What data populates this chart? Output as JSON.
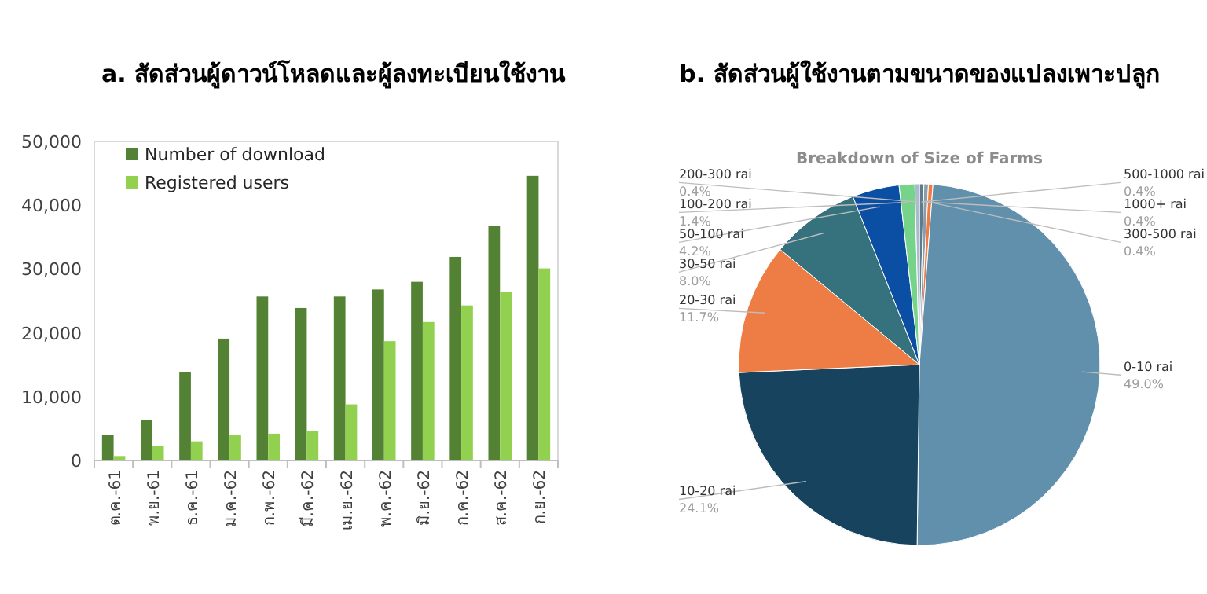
{
  "chart_data": [
    {
      "type": "bar",
      "title": "a. สัดส่วนผู้ดาวน์โหลดและผู้ลงทะเบียนใช้งาน",
      "categories": [
        "ต.ค.-61",
        "พ.ย.-61",
        "ธ.ค.-61",
        "ม.ค.-62",
        "ก.พ.-62",
        "มี.ค.-62",
        "เม.ย.-62",
        "พ.ค.-62",
        "มิ.ย.-62",
        "ก.ค.-62",
        "ส.ค.-62",
        "ก.ย.-62"
      ],
      "series": [
        {
          "name": "Number of download",
          "color": "#548235",
          "values": [
            4000,
            6400,
            13900,
            19100,
            25700,
            23900,
            25700,
            26800,
            28000,
            31900,
            36800,
            44600
          ]
        },
        {
          "name": "Registered users",
          "color": "#92d050",
          "values": [
            700,
            2300,
            3000,
            4000,
            4200,
            4600,
            8800,
            18700,
            21700,
            24300,
            26400,
            30100
          ]
        }
      ],
      "ylim": [
        0,
        50000
      ],
      "yticks": [
        0,
        {
          "value": 10000,
          "label": "10,000"
        },
        {
          "value": 20000,
          "label": "20,000"
        },
        {
          "value": 30000,
          "label": "30,000"
        },
        {
          "value": 40000,
          "label": "40,000"
        },
        {
          "value": 50000,
          "label": "50,000"
        }
      ],
      "grid": false,
      "legend": "top left"
    },
    {
      "type": "pie",
      "title": "b. สัดส่วนผู้ใช้งานตามขนาดของแปลงเพาะปลูก",
      "subtitle": "Breakdown of Size of Farms",
      "categories": [
        "500-1000 rai",
        "1000+ rai",
        "300-500 rai",
        "0-10 rai",
        "10-20 rai",
        "20-30 rai",
        "30-50 rai",
        "50-100 rai",
        "100-200 rai",
        "200-300 rai"
      ],
      "values": [
        0.4,
        0.4,
        0.4,
        49.0,
        24.1,
        11.7,
        8.0,
        4.2,
        1.4,
        0.4
      ],
      "colors": [
        "#5d7d8f",
        "#8c9caa",
        "#ee7d45",
        "#6190ad",
        "#17435f",
        "#ee7d45",
        "#36717e",
        "#0b4fa4",
        "#76d38a",
        "#a9bccd"
      ],
      "value_labels": [
        "0.4%",
        "0.4%",
        "0.4%",
        "49.0%",
        "24.1%",
        "11.7%",
        "8.0%",
        "4.2%",
        "1.4%",
        "0.4%"
      ]
    }
  ]
}
